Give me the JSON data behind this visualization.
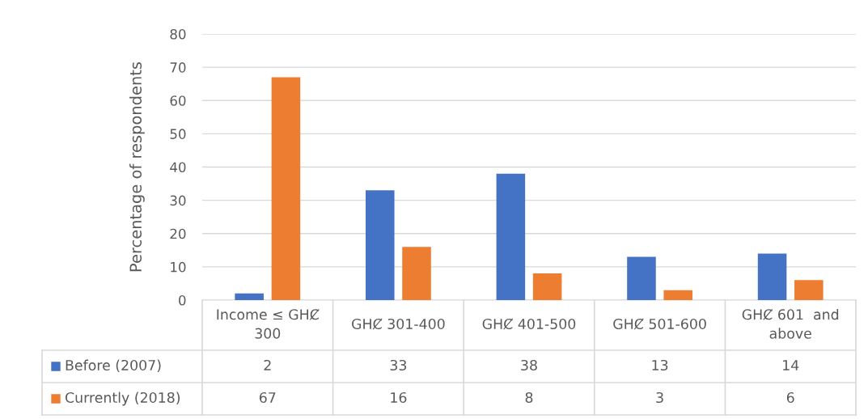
{
  "chart_data": {
    "type": "bar",
    "ylabel": "Percentage of respondents",
    "categories": [
      "Income ≤ GHȻ 300",
      "GHȻ 301-400",
      "GHȻ 401-500",
      "GHȻ 501-600",
      "GHȻ 601  and above"
    ],
    "series": [
      {
        "name": "Before (2007)",
        "color": "#4472c4",
        "values": [
          2,
          33,
          38,
          13,
          14
        ]
      },
      {
        "name": "Currently (2018)",
        "color": "#ed7d31",
        "values": [
          67,
          16,
          8,
          3,
          6
        ]
      }
    ],
    "ylim": [
      0,
      80
    ],
    "yticks": [
      0,
      10,
      20,
      30,
      40,
      50,
      60,
      70,
      80
    ],
    "grid": "y",
    "legend": "bottom",
    "data_labels": true
  }
}
